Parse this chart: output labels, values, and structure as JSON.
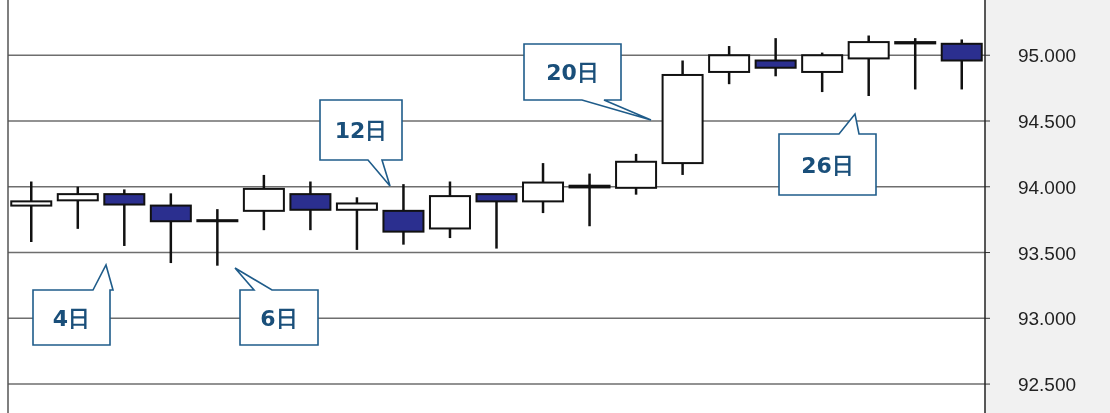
{
  "chart_data": {
    "type": "candlestick",
    "categories": [
      null,
      null,
      null,
      null,
      null,
      null,
      null,
      null,
      null,
      null,
      null,
      null,
      null,
      null,
      null,
      null,
      null,
      null,
      null,
      null,
      null
    ],
    "ohlc": [
      [
        93.857,
        94.04,
        93.58,
        93.889
      ],
      [
        93.897,
        94.0,
        93.68,
        93.944
      ],
      [
        93.944,
        93.98,
        93.55,
        93.865
      ],
      [
        93.857,
        93.95,
        93.42,
        93.738
      ],
      [
        93.746,
        93.83,
        93.4,
        93.738
      ],
      [
        93.817,
        94.09,
        93.67,
        93.984
      ],
      [
        93.944,
        94.04,
        93.67,
        93.825
      ],
      [
        93.825,
        93.92,
        93.52,
        93.873
      ],
      [
        93.817,
        94.02,
        93.56,
        93.659
      ],
      [
        93.683,
        94.04,
        93.61,
        93.929
      ],
      [
        93.944,
        93.944,
        93.53,
        93.889
      ],
      [
        93.889,
        94.18,
        93.8,
        94.032
      ],
      [
        93.995,
        94.1,
        93.7,
        94.008
      ],
      [
        93.992,
        94.25,
        93.94,
        94.19
      ],
      [
        94.18,
        94.96,
        94.09,
        94.85
      ],
      [
        94.873,
        95.07,
        94.78,
        95.0
      ],
      [
        94.96,
        95.13,
        94.84,
        94.905
      ],
      [
        94.873,
        95.02,
        94.72,
        95.0
      ],
      [
        94.976,
        95.15,
        94.69,
        95.1
      ],
      [
        95.09,
        95.13,
        94.74,
        95.1
      ],
      [
        95.087,
        95.12,
        94.74,
        94.96
      ]
    ],
    "colors": [
      "#ffffff",
      "#ffffff",
      "#2b2f8f",
      "#2b2f8f",
      "#2b2f8f",
      "#ffffff",
      "#2b2f8f",
      "#ffffff",
      "#2b2f8f",
      "#ffffff",
      "#2b2f8f",
      "#ffffff",
      "#000000",
      "#ffffff",
      "#ffffff",
      "#ffffff",
      "#2b2f8f",
      "#ffffff",
      "#ffffff",
      "#000000",
      "#2b2f8f"
    ],
    "ylim": [
      92.28,
      95.42
    ],
    "yticks": [
      {
        "value": 92.5,
        "label": "92.500"
      },
      {
        "value": 93,
        "label": "93.000"
      },
      {
        "value": 93.5,
        "label": "93.500"
      },
      {
        "value": 94,
        "label": "94.000"
      },
      {
        "value": 94.5,
        "label": "94.500"
      },
      {
        "value": 95,
        "label": "95.000"
      }
    ],
    "grid": "y",
    "annotations": [
      "4日",
      "6日",
      "12日",
      "20日",
      "26日"
    ]
  }
}
